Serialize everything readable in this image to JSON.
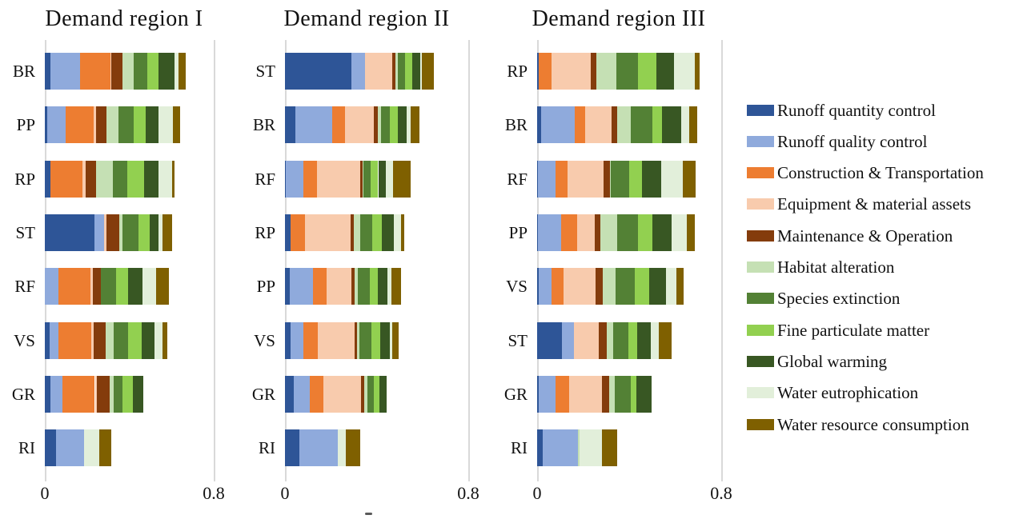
{
  "legend": {
    "position": "right",
    "items": [
      {
        "label": "Runoff quantity control",
        "color": "#2E5597"
      },
      {
        "label": "Runoff quality control",
        "color": "#8FAADC"
      },
      {
        "label": "Construction & Transportation",
        "color": "#ED7D31"
      },
      {
        "label": "Equipment & material assets",
        "color": "#F8CBAD"
      },
      {
        "label": "Maintenance & Operation",
        "color": "#843C0C"
      },
      {
        "label": "Habitat alteration",
        "color": "#C5E0B4"
      },
      {
        "label": "Species extinction",
        "color": "#538135"
      },
      {
        "label": "Fine particulate matter",
        "color": "#92D050"
      },
      {
        "label": "Global warming",
        "color": "#385723"
      },
      {
        "label": "Water eutrophication",
        "color": "#E2EFDA"
      },
      {
        "label": "Water resource consumption",
        "color": "#7F6000"
      }
    ]
  },
  "chart_data": [
    {
      "type": "bar",
      "stacked": true,
      "orientation": "horizontal",
      "title": "Demand region I",
      "xlim": [
        0,
        0.8
      ],
      "x_ticks": [
        "0",
        "0.8"
      ],
      "grid": "vertical lines at 0 and 0.8 only",
      "categories": [
        "BR",
        "PP",
        "RP",
        "ST",
        "RF",
        "VS",
        "GR",
        "RI"
      ],
      "series": [
        {
          "name": "Runoff quantity control",
          "values": [
            0.025,
            0.012,
            0.028,
            0.234,
            0,
            0.023,
            0.028,
            0.053
          ]
        },
        {
          "name": "Runoff quality control",
          "values": [
            0.14,
            0.085,
            0,
            0.047,
            0.063,
            0.04,
            0.057,
            0.133
          ]
        },
        {
          "name": "Construction & Transportation",
          "values": [
            0.145,
            0.135,
            0.149,
            0,
            0.154,
            0.157,
            0.152,
            0
          ]
        },
        {
          "name": "Equipment & material assets",
          "values": [
            0.004,
            0.01,
            0.015,
            0.012,
            0.01,
            0.01,
            0.009,
            0
          ]
        },
        {
          "name": "Maintenance & Operation",
          "values": [
            0.055,
            0.05,
            0.05,
            0.058,
            0.04,
            0.057,
            0.06,
            0
          ]
        },
        {
          "name": "Habitat alteration",
          "values": [
            0.05,
            0.058,
            0.08,
            0.018,
            0,
            0.038,
            0.019,
            0
          ]
        },
        {
          "name": "Species extinction",
          "values": [
            0.065,
            0.07,
            0.069,
            0.076,
            0.072,
            0.07,
            0.044,
            0
          ]
        },
        {
          "name": "Fine particulate matter",
          "values": [
            0.055,
            0.057,
            0.078,
            0.05,
            0.054,
            0.063,
            0.048,
            0
          ]
        },
        {
          "name": "Global warming",
          "values": [
            0.075,
            0.063,
            0.071,
            0.045,
            0.071,
            0.063,
            0.05,
            0
          ]
        },
        {
          "name": "Water eutrophication",
          "values": [
            0.02,
            0.068,
            0.063,
            0.018,
            0.063,
            0.038,
            0,
            0.072
          ]
        },
        {
          "name": "Water resource consumption",
          "values": [
            0.033,
            0.032,
            0.013,
            0.045,
            0.059,
            0.022,
            0,
            0.058
          ]
        }
      ]
    },
    {
      "type": "bar",
      "stacked": true,
      "orientation": "horizontal",
      "title": "Demand region II",
      "xlim": [
        0,
        0.8
      ],
      "x_ticks": [
        "0",
        "0.8"
      ],
      "grid": "vertical lines at 0 and 0.8 only",
      "categories": [
        "ST",
        "BR",
        "RF",
        "RP",
        "PP",
        "VS",
        "GR",
        "RI"
      ],
      "series": [
        {
          "name": "Runoff quantity control",
          "values": [
            0.29,
            0.044,
            0.005,
            0.025,
            0.021,
            0.025,
            0.037,
            0.062
          ]
        },
        {
          "name": "Runoff quality control",
          "values": [
            0.058,
            0.163,
            0.075,
            0,
            0.102,
            0.055,
            0.071,
            0.168
          ]
        },
        {
          "name": "Construction & Transportation",
          "values": [
            0,
            0.055,
            0.06,
            0.061,
            0.057,
            0.062,
            0.061,
            0
          ]
        },
        {
          "name": "Equipment & material assets",
          "values": [
            0.121,
            0.127,
            0.19,
            0.201,
            0.109,
            0.161,
            0.164,
            0
          ]
        },
        {
          "name": "Maintenance & Operation",
          "values": [
            0.014,
            0.016,
            0.008,
            0.014,
            0.014,
            0.011,
            0.014,
            0
          ]
        },
        {
          "name": "Habitat alteration",
          "values": [
            0.009,
            0.015,
            0.003,
            0.027,
            0.015,
            0.011,
            0.014,
            0
          ]
        },
        {
          "name": "Species extinction",
          "values": [
            0.031,
            0.038,
            0.032,
            0.052,
            0.052,
            0.053,
            0.027,
            0
          ]
        },
        {
          "name": "Fine particulate matter",
          "values": [
            0.031,
            0.035,
            0.034,
            0.044,
            0.034,
            0.037,
            0.023,
            0
          ]
        },
        {
          "name": "Global warming",
          "values": [
            0.035,
            0.039,
            0.032,
            0.051,
            0.044,
            0.044,
            0.034,
            0
          ]
        },
        {
          "name": "Water eutrophication",
          "values": [
            0.009,
            0.018,
            0.034,
            0.032,
            0.016,
            0.008,
            0,
            0.037
          ]
        },
        {
          "name": "Water resource consumption",
          "values": [
            0.052,
            0.038,
            0.077,
            0.014,
            0.044,
            0.029,
            0,
            0.06
          ]
        }
      ]
    },
    {
      "type": "bar",
      "stacked": true,
      "orientation": "horizontal",
      "title": "Demand region III",
      "xlim": [
        0,
        0.8
      ],
      "x_ticks": [
        "0",
        "0.8"
      ],
      "grid": "vertical lines at 0 and 0.8 only",
      "categories": [
        "RP",
        "BR",
        "RF",
        "PP",
        "VS",
        "ST",
        "GR",
        "RI"
      ],
      "series": [
        {
          "name": "Runoff quantity control",
          "values": [
            0.007,
            0.016,
            0.004,
            0.005,
            0.008,
            0.107,
            0.008,
            0.023
          ]
        },
        {
          "name": "Runoff quality control",
          "values": [
            0,
            0.148,
            0.075,
            0.1,
            0.055,
            0.052,
            0.073,
            0.153
          ]
        },
        {
          "name": "Construction & Transportation",
          "values": [
            0.056,
            0.046,
            0.052,
            0.07,
            0.053,
            0,
            0.058,
            0
          ]
        },
        {
          "name": "Equipment & material assets",
          "values": [
            0.169,
            0.114,
            0.157,
            0.074,
            0.139,
            0.108,
            0.142,
            0
          ]
        },
        {
          "name": "Maintenance & Operation",
          "values": [
            0.026,
            0.023,
            0.029,
            0.027,
            0.031,
            0.035,
            0.032,
            0
          ]
        },
        {
          "name": "Habitat alteration",
          "values": [
            0.087,
            0.06,
            0.004,
            0.073,
            0.055,
            0.028,
            0.023,
            0.01
          ]
        },
        {
          "name": "Species extinction",
          "values": [
            0.093,
            0.093,
            0.079,
            0.089,
            0.085,
            0.065,
            0.07,
            0
          ]
        },
        {
          "name": "Fine particulate matter",
          "values": [
            0.081,
            0.044,
            0.055,
            0.064,
            0.061,
            0.039,
            0.025,
            0
          ]
        },
        {
          "name": "Global warming",
          "values": [
            0.075,
            0.083,
            0.085,
            0.083,
            0.074,
            0.061,
            0.067,
            0
          ]
        },
        {
          "name": "Water eutrophication",
          "values": [
            0.09,
            0.035,
            0.093,
            0.067,
            0.044,
            0.035,
            0,
            0.095
          ]
        },
        {
          "name": "Water resource consumption",
          "values": [
            0.021,
            0.032,
            0.055,
            0.032,
            0.032,
            0.055,
            0,
            0.066
          ]
        }
      ]
    }
  ]
}
